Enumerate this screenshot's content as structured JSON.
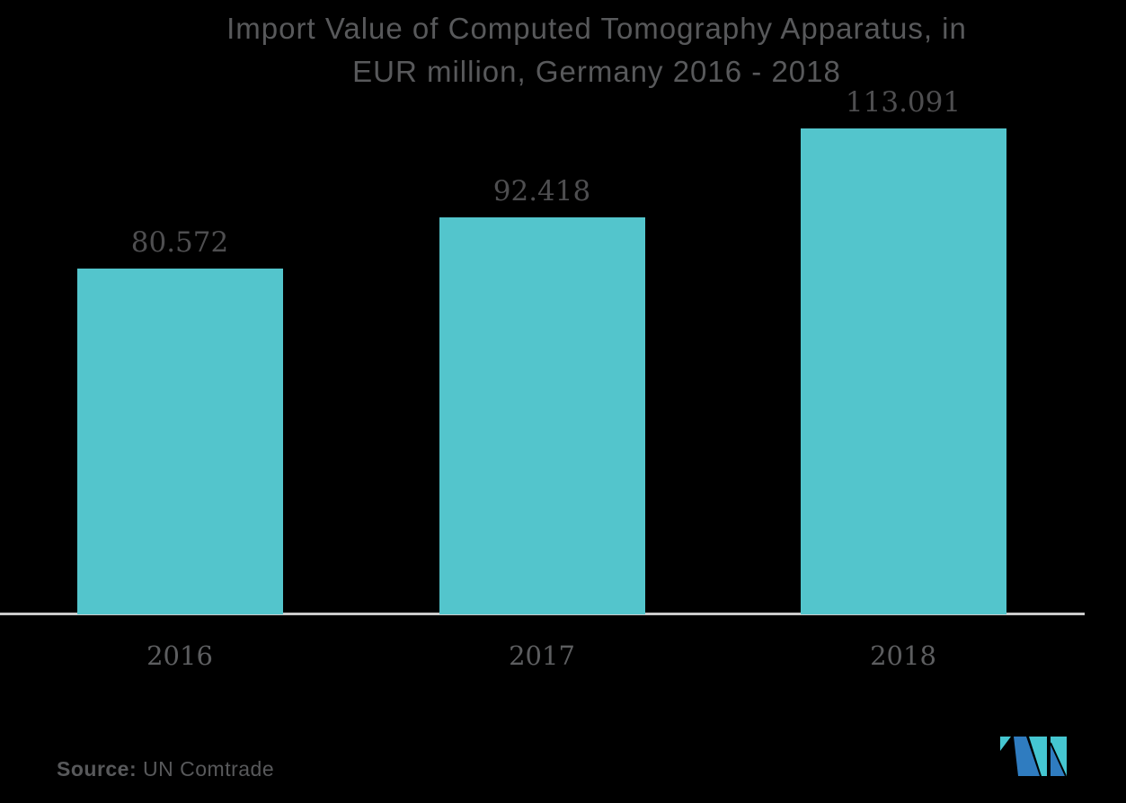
{
  "chart_data": {
    "type": "bar",
    "title": "Import Value of Computed Tomography Apparatus, in EUR million, Germany 2016 - 2018",
    "title_line1": "Import Value of Computed Tomography Apparatus, in",
    "title_line2": "EUR million, Germany 2016 - 2018",
    "categories": [
      "2016",
      "2017",
      "2018"
    ],
    "values": [
      80.572,
      92.418,
      113.091
    ],
    "value_labels": [
      "80.572",
      "92.418",
      "113.091"
    ],
    "xlabel": "",
    "ylabel": "",
    "ylim": [
      0,
      120
    ],
    "grid": false,
    "legend": "none",
    "bar_color": "#53c5cc",
    "axis_line_color": "#cbcbcb"
  },
  "source": {
    "label": "Source:",
    "text": " UN Comtrade"
  },
  "logo": {
    "name": "mordor-intelligence-logo",
    "blue": "#2f7cc0",
    "teal": "#45c6d1"
  },
  "colors": {
    "background": "#000000",
    "title_text": "#58595b",
    "value_text": "#4e4e50",
    "category_text": "#5d5e60",
    "source_text": "#58595b"
  }
}
